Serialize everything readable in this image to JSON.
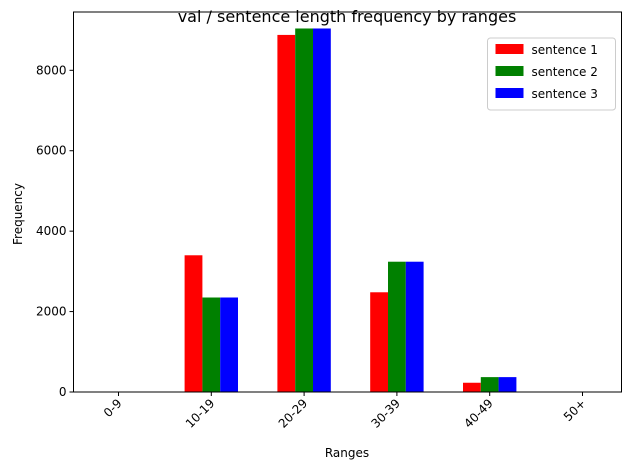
{
  "chart_data": {
    "type": "bar",
    "title": "val / sentence length frequency by ranges",
    "xlabel": "Ranges",
    "ylabel": "Frequency",
    "categories": [
      "0-9",
      "10-19",
      "20-29",
      "30-39",
      "40-49",
      "50+"
    ],
    "ylim": [
      0,
      9450
    ],
    "yticks": [
      0,
      2000,
      4000,
      6000,
      8000
    ],
    "grid": false,
    "legend_position": "top-right",
    "series": [
      {
        "name": "sentence 1",
        "color": "#ff0000",
        "values": [
          0,
          3400,
          8880,
          2480,
          230,
          0
        ]
      },
      {
        "name": "sentence 2",
        "color": "#008000",
        "values": [
          0,
          2350,
          9040,
          3240,
          370,
          0
        ]
      },
      {
        "name": "sentence 3",
        "color": "#0000ff",
        "values": [
          0,
          2350,
          9040,
          3240,
          370,
          0
        ]
      }
    ]
  }
}
